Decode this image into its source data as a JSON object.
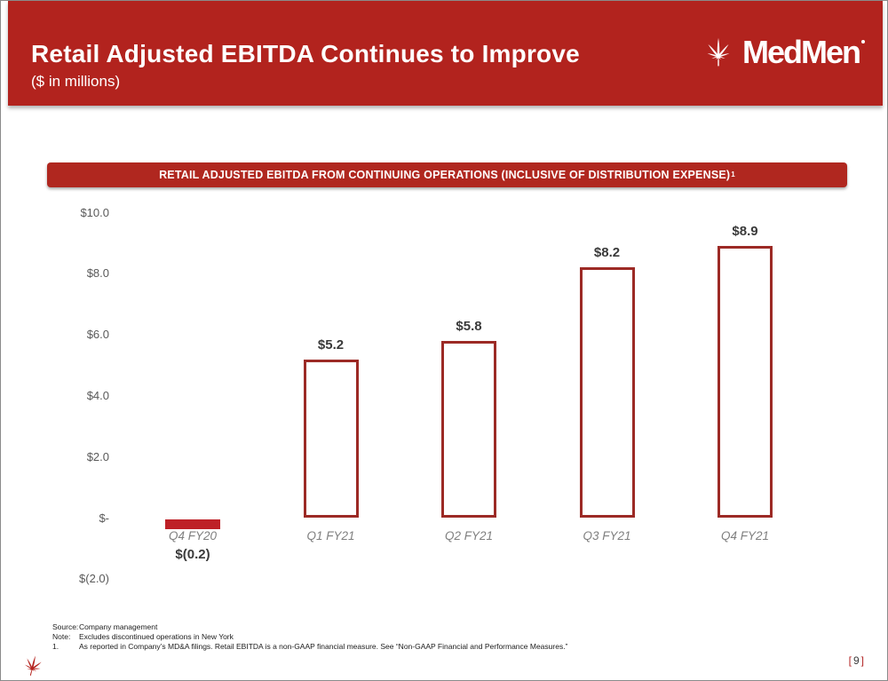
{
  "header": {
    "title": "Retail Adjusted EBITDA Continues to Improve",
    "subtitle": "($ in millions)",
    "logo_text": "MedMen",
    "logo_icon": "cannabis-leaf-icon"
  },
  "banner": {
    "text": "RETAIL ADJUSTED EBITDA FROM CONTINUING OPERATIONS (INCLUSIVE OF DISTRIBUTION EXPENSE)",
    "footnote_marker": "1"
  },
  "chart_data": {
    "type": "bar",
    "title": "RETAIL ADJUSTED EBITDA FROM CONTINUING OPERATIONS (INCLUSIVE OF DISTRIBUTION EXPENSE)1",
    "units": "($ in millions)",
    "categories": [
      "Q4 FY20",
      "Q1 FY21",
      "Q2 FY21",
      "Q3 FY21",
      "Q4 FY21"
    ],
    "values": [
      -0.2,
      5.2,
      5.8,
      8.2,
      8.9
    ],
    "value_labels": [
      "$(0.2)",
      "$5.2",
      "$5.8",
      "$8.2",
      "$8.9"
    ],
    "bar_styles": [
      "filled",
      "outlined",
      "outlined",
      "outlined",
      "outlined"
    ],
    "yticks": [
      {
        "label": "$10.0",
        "value": 10
      },
      {
        "label": "$8.0",
        "value": 8
      },
      {
        "label": "$6.0",
        "value": 6
      },
      {
        "label": "$4.0",
        "value": 4
      },
      {
        "label": "$2.0",
        "value": 2
      },
      {
        "label": "$-",
        "value": 0
      },
      {
        "label": "$(2.0)",
        "value": -2
      }
    ],
    "ylim": [
      -2,
      10
    ],
    "xlabel": "",
    "ylabel": "",
    "grid": false,
    "legend": false
  },
  "footer": {
    "rows": [
      {
        "label": "Source:",
        "text": "Company management"
      },
      {
        "label": "Note:",
        "text": "Excludes discontinued operations in New York"
      },
      {
        "label": "1.",
        "text": "As reported in Company’s MD&A filings. Retail EBITDA is a non-GAAP financial measure. See “Non-GAAP Financial and Performance Measures.”"
      }
    ]
  },
  "page": {
    "bracket_left": "[",
    "number": "9",
    "bracket_right": "]"
  },
  "colors": {
    "header_red": "#B2231E",
    "banner_red": "#B0271F",
    "bar_fill": "#BE2026",
    "bar_outline": "#9C2A25",
    "leaf_red": "#B5231E",
    "bracket_red": "#B22222"
  }
}
